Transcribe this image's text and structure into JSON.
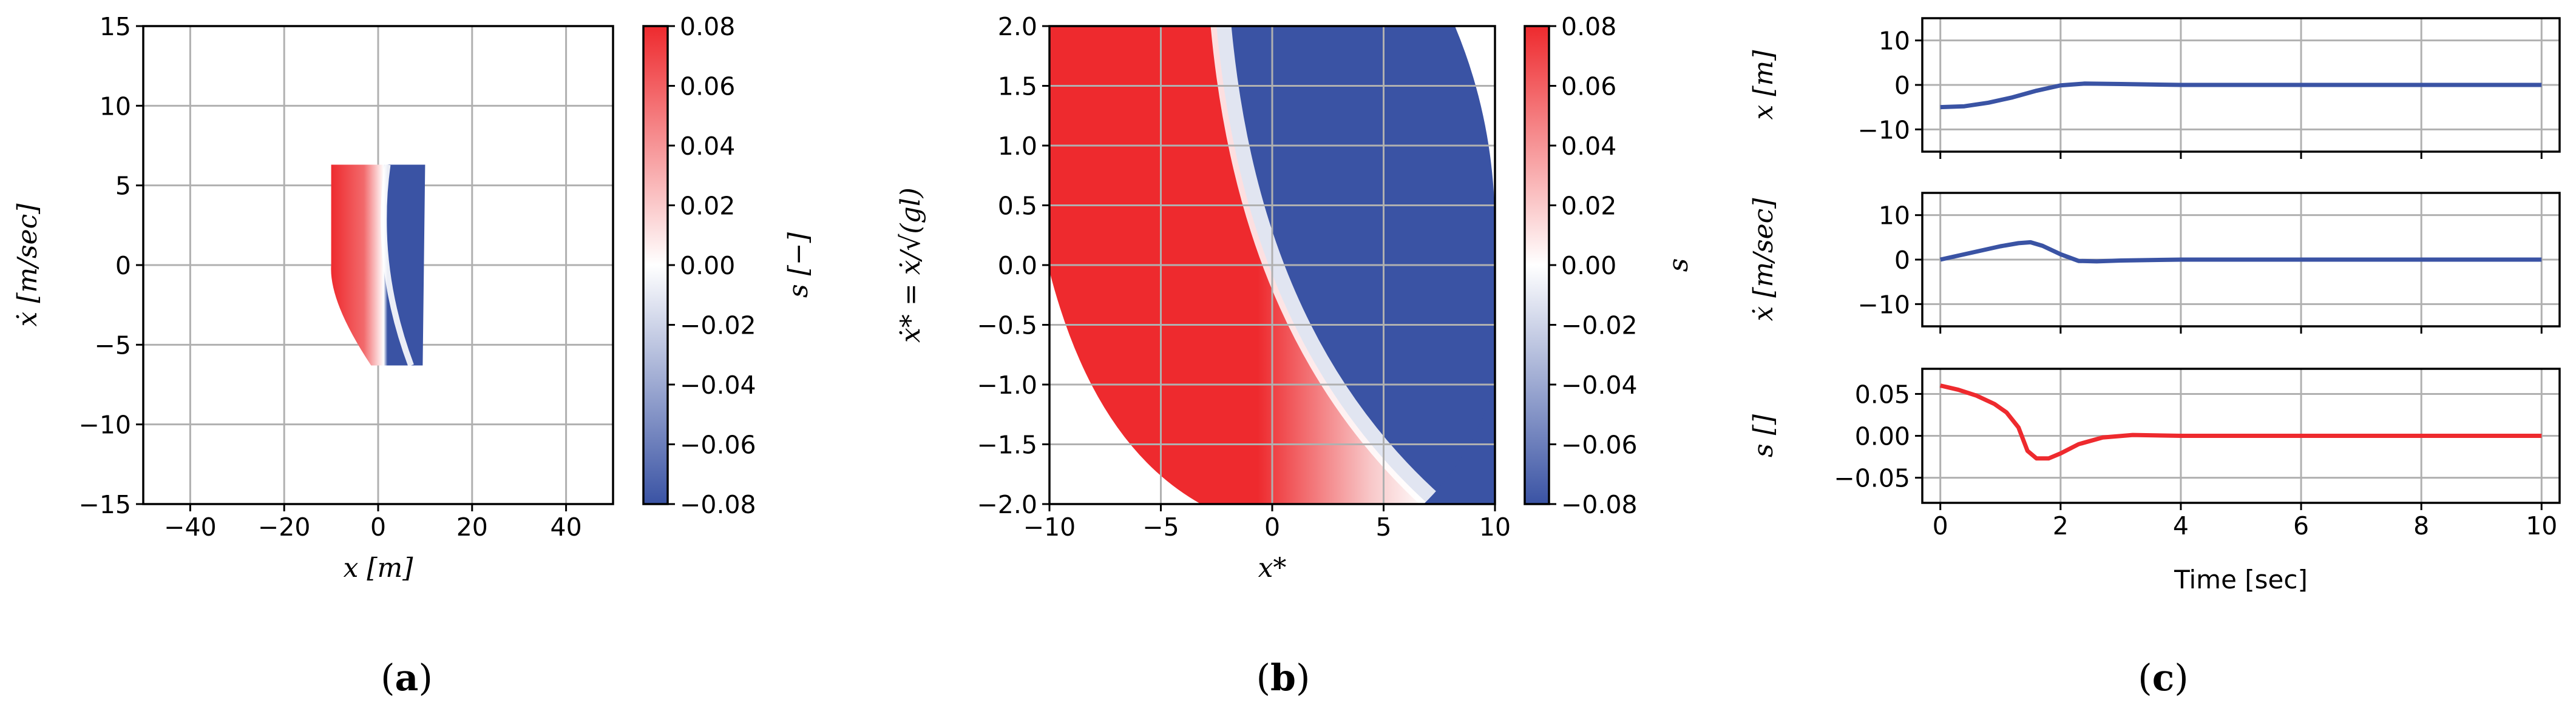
{
  "colors": {
    "red": "#ee2a2e",
    "white": "#ffffff",
    "blue": "#3a53a4",
    "line_blue": "#3a53a4",
    "line_red": "#ee2a2e",
    "grid": "#b0b0b0"
  },
  "panels": [
    {
      "letter": "a",
      "open": "(",
      "close": ")"
    },
    {
      "letter": "b",
      "open": "(",
      "close": ")"
    },
    {
      "letter": "c",
      "open": "(",
      "close": ")"
    }
  ],
  "chart_data": [
    {
      "type": "heatmap",
      "xlabel": "x [m]",
      "ylabel": "ẋ [m/sec]",
      "xlim": [
        -50,
        50
      ],
      "ylim": [
        -15,
        15
      ],
      "xticks": [
        -40,
        -20,
        0,
        20,
        40
      ],
      "yticks": [
        -15,
        -10,
        -5,
        0,
        5,
        10,
        15
      ],
      "x_tick_labels": [
        "−40",
        "−20",
        "0",
        "20",
        "40"
      ],
      "y_tick_labels": [
        "−15",
        "−10",
        "−5",
        "0",
        "5",
        "10",
        "15"
      ],
      "grid": true,
      "region": {
        "x_min": -10,
        "x_max": 10,
        "xdot_min": -6.3,
        "xdot_max": 6.3
      },
      "colorbar": {
        "label": "s [−]",
        "range": [
          -0.08,
          0.08
        ],
        "ticks": [
          0.08,
          0.06,
          0.04,
          0.02,
          0.0,
          -0.02,
          -0.04,
          -0.06,
          -0.08
        ],
        "tick_labels": [
          "0.08",
          "0.06",
          "0.04",
          "0.02",
          "0.00",
          "−0.02",
          "−0.04",
          "−0.06",
          "−0.08"
        ]
      }
    },
    {
      "type": "heatmap",
      "xlabel": "x*",
      "ylabel": "ẋ* = ẋ/√(gl)",
      "xlim": [
        -10,
        10
      ],
      "ylim": [
        -2,
        2
      ],
      "xticks": [
        -10,
        -5,
        0,
        5,
        10
      ],
      "yticks": [
        2.0,
        1.5,
        1.0,
        0.5,
        0.0,
        -0.5,
        -1.0,
        -1.5,
        -2.0
      ],
      "x_tick_labels": [
        "−10",
        "−5",
        "0",
        "5",
        "10"
      ],
      "y_tick_labels": [
        "2.0",
        "1.5",
        "1.0",
        "0.5",
        "0.0",
        "−0.5",
        "−1.0",
        "−1.5",
        "−2.0"
      ],
      "grid": true,
      "colorbar": {
        "label": "s",
        "range": [
          -0.08,
          0.08
        ],
        "ticks": [
          0.08,
          0.06,
          0.04,
          0.02,
          0.0,
          -0.02,
          -0.04,
          -0.06,
          -0.08
        ],
        "tick_labels": [
          "0.08",
          "0.06",
          "0.04",
          "0.02",
          "0.00",
          "−0.02",
          "−0.04",
          "−0.06",
          "−0.08"
        ]
      }
    },
    {
      "type": "line",
      "xlabel": "Time [sec]",
      "xlim": [
        -0.3,
        10.3
      ],
      "xticks": [
        0,
        2,
        4,
        6,
        8,
        10
      ],
      "x_tick_labels": [
        "0",
        "2",
        "4",
        "6",
        "8",
        "10"
      ],
      "grid": true,
      "subplots": [
        {
          "ylabel": "x [m]",
          "ylim": [
            -15,
            15
          ],
          "yticks": [
            10,
            0,
            -10
          ],
          "y_tick_labels": [
            "10",
            "0",
            "−10"
          ],
          "series": [
            {
              "x": [
                0,
                0.4,
                0.8,
                1.2,
                1.6,
                2.0,
                2.4,
                3.0,
                4.0,
                6.0,
                8.0,
                10.0
              ],
              "y": [
                -5.0,
                -4.8,
                -4.0,
                -2.8,
                -1.3,
                -0.1,
                0.3,
                0.2,
                0.0,
                0.0,
                0.0,
                0.0
              ]
            }
          ]
        },
        {
          "ylabel": "ẋ [m/sec]",
          "ylim": [
            -15,
            15
          ],
          "yticks": [
            10,
            0,
            -10
          ],
          "y_tick_labels": [
            "10",
            "0",
            "−10"
          ],
          "series": [
            {
              "x": [
                0,
                0.5,
                1.0,
                1.3,
                1.5,
                1.7,
                2.0,
                2.3,
                2.6,
                3.0,
                4.0,
                6.0,
                8.0,
                10.0
              ],
              "y": [
                0.0,
                1.5,
                3.0,
                3.7,
                3.9,
                3.1,
                1.2,
                -0.3,
                -0.4,
                -0.2,
                0.0,
                0.0,
                0.0,
                0.0
              ]
            }
          ]
        },
        {
          "ylabel": "s []",
          "ylim": [
            -0.08,
            0.08
          ],
          "yticks": [
            0.05,
            0.0,
            -0.05
          ],
          "y_tick_labels": [
            "0.05",
            "0.00",
            "−0.05"
          ],
          "series": [
            {
              "x": [
                0,
                0.3,
                0.6,
                0.9,
                1.1,
                1.3,
                1.45,
                1.6,
                1.8,
                2.0,
                2.3,
                2.7,
                3.2,
                4.0,
                6.0,
                8.0,
                10.0
              ],
              "y": [
                0.06,
                0.055,
                0.048,
                0.038,
                0.028,
                0.01,
                -0.018,
                -0.027,
                -0.027,
                -0.021,
                -0.01,
                -0.002,
                0.001,
                0.0,
                0.0,
                0.0,
                0.0
              ]
            }
          ]
        }
      ]
    }
  ]
}
